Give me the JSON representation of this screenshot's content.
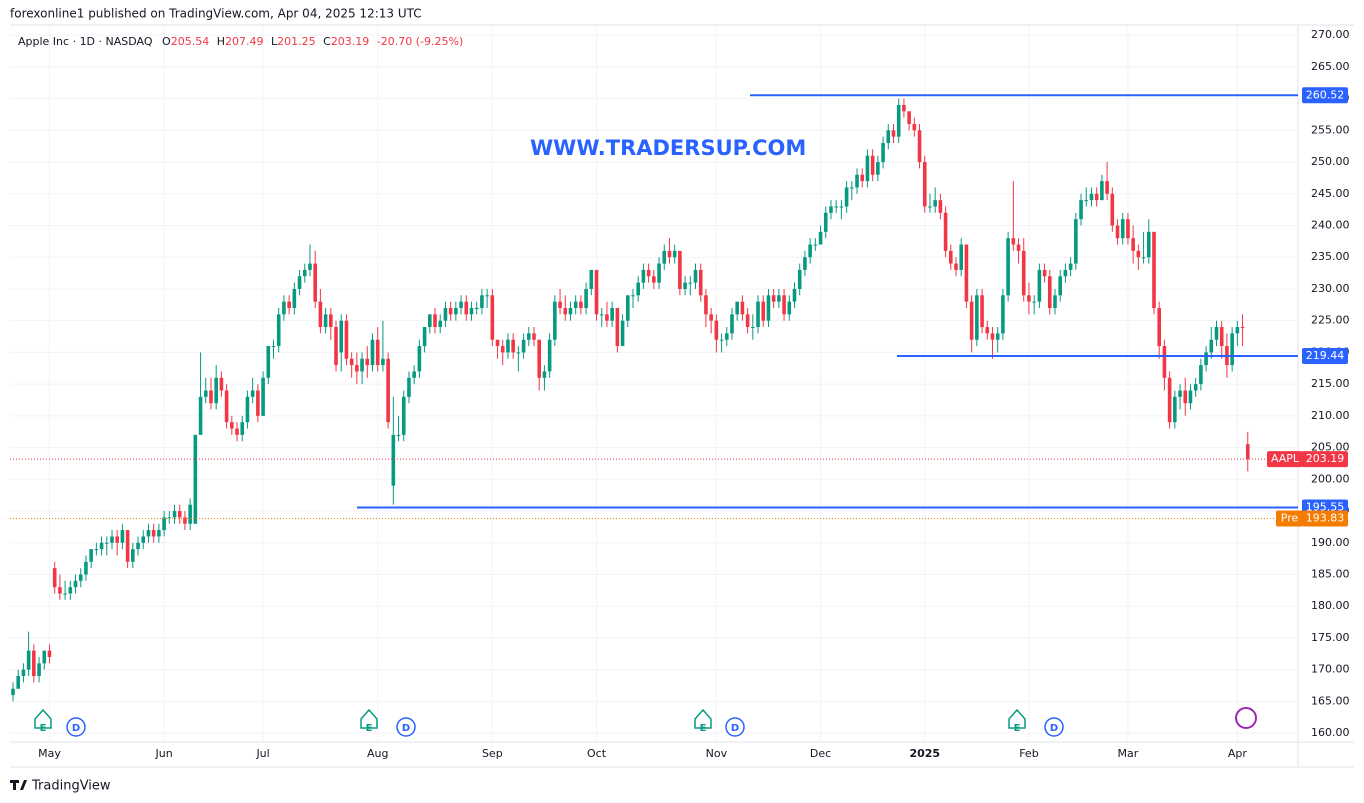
{
  "header": {
    "published": "forexonline1 published on TradingView.com, Apr 04, 2025 12:13 UTC"
  },
  "watermark": "WWW.TRADERSUP.COM",
  "footer": {
    "brand": "TradingView"
  },
  "chart_data": {
    "type": "candlestick",
    "title": "Apple Inc · 1D · NASDAQ",
    "legend": {
      "labels": [
        "O",
        "H",
        "L",
        "C"
      ],
      "values": [
        "205.54",
        "207.49",
        "201.25",
        "203.19"
      ],
      "change": "-20.70 (-9.25%)"
    },
    "up_color": "#089981",
    "down_color": "#f23645",
    "candles": [
      [
        166,
        168,
        165,
        167
      ],
      [
        167,
        170,
        167,
        169
      ],
      [
        169,
        171,
        168,
        170
      ],
      [
        170,
        176,
        169,
        173
      ],
      [
        173,
        174,
        168,
        169
      ],
      [
        169,
        172,
        168,
        171
      ],
      [
        171,
        173,
        170,
        173
      ],
      [
        173,
        174,
        171,
        172
      ],
      [
        186,
        187,
        182,
        183
      ],
      [
        183,
        185,
        181,
        182
      ],
      [
        182,
        184,
        181,
        182
      ],
      [
        182,
        184,
        181,
        183
      ],
      [
        183,
        185,
        182,
        184
      ],
      [
        184,
        186,
        183,
        185
      ],
      [
        185,
        188,
        184,
        187
      ],
      [
        187,
        189,
        186,
        189
      ],
      [
        189,
        190,
        188,
        189
      ],
      [
        189,
        191,
        188,
        190
      ],
      [
        190,
        191,
        188,
        190
      ],
      [
        190,
        192,
        189,
        191
      ],
      [
        191,
        192,
        188,
        190
      ],
      [
        190,
        193,
        189,
        192
      ],
      [
        192,
        192,
        186,
        187
      ],
      [
        187,
        190,
        186,
        189
      ],
      [
        189,
        191,
        188,
        190
      ],
      [
        190,
        192,
        189,
        191
      ],
      [
        191,
        193,
        190,
        192
      ],
      [
        192,
        193,
        190,
        191
      ],
      [
        191,
        193,
        190,
        192
      ],
      [
        192,
        195,
        191,
        194
      ],
      [
        194,
        195,
        193,
        194
      ],
      [
        194,
        196,
        193,
        195
      ],
      [
        195,
        196,
        193,
        194
      ],
      [
        194,
        195,
        192,
        193
      ],
      [
        193,
        197,
        192,
        196
      ],
      [
        193,
        207,
        193,
        207
      ],
      [
        207,
        220,
        207,
        213
      ],
      [
        213,
        216,
        212,
        214
      ],
      [
        214,
        216,
        211,
        212
      ],
      [
        212,
        218,
        211,
        216
      ],
      [
        216,
        217,
        213,
        214
      ],
      [
        214,
        215,
        208,
        209
      ],
      [
        209,
        210,
        207,
        208
      ],
      [
        208,
        209,
        206,
        207
      ],
      [
        207,
        210,
        206,
        209
      ],
      [
        209,
        214,
        208,
        213
      ],
      [
        213,
        216,
        212,
        214
      ],
      [
        214,
        215,
        209,
        210
      ],
      [
        210,
        217,
        210,
        216
      ],
      [
        216,
        221,
        215,
        221
      ],
      [
        221,
        222,
        219,
        221
      ],
      [
        221,
        227,
        220,
        226
      ],
      [
        226,
        229,
        225,
        228
      ],
      [
        228,
        229,
        226,
        227
      ],
      [
        227,
        231,
        226,
        230
      ],
      [
        230,
        233,
        229,
        232
      ],
      [
        232,
        234,
        231,
        233
      ],
      [
        233,
        237,
        232,
        234
      ],
      [
        234,
        236,
        227,
        228
      ],
      [
        228,
        230,
        223,
        224
      ],
      [
        224,
        227,
        223,
        226
      ],
      [
        226,
        227,
        222,
        224
      ],
      [
        224,
        225,
        217,
        218
      ],
      [
        220,
        226,
        217,
        225
      ],
      [
        225,
        226,
        218,
        219
      ],
      [
        219,
        220,
        216,
        218
      ],
      [
        218,
        220,
        215,
        217
      ],
      [
        217,
        220,
        215,
        219
      ],
      [
        219,
        221,
        216,
        218
      ],
      [
        218,
        223,
        217,
        222
      ],
      [
        222,
        224,
        217,
        218
      ],
      [
        218,
        225,
        217,
        219
      ],
      [
        219,
        220,
        208,
        209
      ],
      [
        199,
        213,
        196,
        207
      ],
      [
        207,
        210,
        206,
        207
      ],
      [
        207,
        214,
        206,
        213
      ],
      [
        213,
        217,
        212,
        216
      ],
      [
        216,
        218,
        215,
        217
      ],
      [
        217,
        222,
        216,
        221
      ],
      [
        221,
        224,
        220,
        224
      ],
      [
        224,
        226,
        223,
        226
      ],
      [
        226,
        227,
        223,
        224
      ],
      [
        224,
        226,
        223,
        225
      ],
      [
        225,
        228,
        224,
        227
      ],
      [
        227,
        228,
        225,
        226
      ],
      [
        226,
        228,
        225,
        227
      ],
      [
        227,
        229,
        226,
        228
      ],
      [
        228,
        229,
        225,
        226
      ],
      [
        226,
        228,
        225,
        227
      ],
      [
        227,
        228,
        226,
        227
      ],
      [
        227,
        230,
        226,
        229
      ],
      [
        229,
        230,
        227,
        229
      ],
      [
        229,
        230,
        221,
        222
      ],
      [
        222,
        222,
        219,
        221
      ],
      [
        221,
        222,
        218,
        220
      ],
      [
        220,
        223,
        219,
        222
      ],
      [
        222,
        223,
        219,
        220
      ],
      [
        220,
        221,
        217,
        220
      ],
      [
        220,
        223,
        219,
        222
      ],
      [
        222,
        224,
        221,
        223
      ],
      [
        223,
        224,
        221,
        222
      ],
      [
        222,
        222,
        214,
        216
      ],
      [
        216,
        218,
        214,
        217
      ],
      [
        217,
        223,
        216,
        222
      ],
      [
        222,
        229,
        221,
        228
      ],
      [
        228,
        230,
        226,
        227
      ],
      [
        227,
        229,
        225,
        226
      ],
      [
        226,
        228,
        225,
        227
      ],
      [
        227,
        229,
        226,
        228
      ],
      [
        228,
        229,
        226,
        227
      ],
      [
        227,
        231,
        226,
        230
      ],
      [
        230,
        233,
        229,
        233
      ],
      [
        233,
        233,
        225,
        226
      ],
      [
        226,
        227,
        224,
        226
      ],
      [
        226,
        228,
        224,
        225
      ],
      [
        225,
        228,
        224,
        227
      ],
      [
        227,
        227,
        220,
        221
      ],
      [
        221,
        226,
        221,
        225
      ],
      [
        225,
        229,
        224,
        229
      ],
      [
        229,
        230,
        227,
        229
      ],
      [
        229,
        232,
        228,
        231
      ],
      [
        231,
        234,
        230,
        233
      ],
      [
        233,
        234,
        231,
        232
      ],
      [
        232,
        233,
        230,
        231
      ],
      [
        231,
        235,
        230,
        234
      ],
      [
        234,
        237,
        233,
        236
      ],
      [
        236,
        238,
        234,
        235
      ],
      [
        235,
        237,
        234,
        236
      ],
      [
        236,
        236,
        229,
        230
      ],
      [
        230,
        232,
        229,
        231
      ],
      [
        231,
        232,
        229,
        231
      ],
      [
        231,
        234,
        230,
        233
      ],
      [
        233,
        234,
        228,
        229
      ],
      [
        229,
        230,
        224,
        226
      ],
      [
        226,
        227,
        223,
        225
      ],
      [
        225,
        226,
        220,
        222
      ],
      [
        222,
        223,
        220,
        222
      ],
      [
        222,
        224,
        221,
        223
      ],
      [
        223,
        227,
        222,
        226
      ],
      [
        226,
        228,
        225,
        228
      ],
      [
        228,
        229,
        225,
        226
      ],
      [
        226,
        227,
        223,
        224
      ],
      [
        224,
        226,
        222,
        224
      ],
      [
        224,
        229,
        223,
        228
      ],
      [
        228,
        229,
        224,
        225
      ],
      [
        225,
        230,
        224,
        229
      ],
      [
        229,
        230,
        227,
        228
      ],
      [
        228,
        230,
        227,
        229
      ],
      [
        229,
        230,
        225,
        226
      ],
      [
        226,
        229,
        225,
        228
      ],
      [
        228,
        231,
        227,
        230
      ],
      [
        230,
        234,
        229,
        233
      ],
      [
        233,
        236,
        232,
        235
      ],
      [
        235,
        238,
        234,
        237
      ],
      [
        237,
        238,
        236,
        237
      ],
      [
        237,
        240,
        237,
        239
      ],
      [
        239,
        243,
        238,
        242
      ],
      [
        242,
        244,
        241,
        243
      ],
      [
        243,
        244,
        242,
        243
      ],
      [
        243,
        244,
        241,
        243
      ],
      [
        243,
        247,
        242,
        246
      ],
      [
        246,
        247,
        244,
        246
      ],
      [
        246,
        249,
        245,
        248
      ],
      [
        248,
        249,
        246,
        247
      ],
      [
        247,
        252,
        246,
        251
      ],
      [
        251,
        252,
        247,
        248
      ],
      [
        248,
        251,
        247,
        250
      ],
      [
        250,
        254,
        249,
        253
      ],
      [
        253,
        256,
        252,
        255
      ],
      [
        255,
        256,
        253,
        254
      ],
      [
        254,
        260,
        253,
        259
      ],
      [
        259,
        260,
        257,
        258
      ],
      [
        258,
        258,
        255,
        256
      ],
      [
        256,
        257,
        254,
        255
      ],
      [
        255,
        256,
        249,
        250
      ],
      [
        250,
        251,
        242,
        243
      ],
      [
        243,
        245,
        242,
        243
      ],
      [
        243,
        246,
        242,
        244
      ],
      [
        244,
        245,
        241,
        242
      ],
      [
        242,
        243,
        235,
        236
      ],
      [
        236,
        237,
        233,
        234
      ],
      [
        234,
        235,
        232,
        233
      ],
      [
        233,
        238,
        232,
        237
      ],
      [
        237,
        237,
        227,
        228
      ],
      [
        228,
        229,
        220,
        222
      ],
      [
        222,
        230,
        221,
        229
      ],
      [
        229,
        230,
        223,
        224
      ],
      [
        224,
        225,
        222,
        223
      ],
      [
        223,
        224,
        219,
        222
      ],
      [
        222,
        224,
        220,
        223
      ],
      [
        223,
        230,
        222,
        229
      ],
      [
        229,
        239,
        228,
        238
      ],
      [
        238,
        247,
        236,
        237
      ],
      [
        237,
        238,
        234,
        236
      ],
      [
        236,
        238,
        228,
        229
      ],
      [
        229,
        231,
        226,
        228
      ],
      [
        228,
        229,
        226,
        228
      ],
      [
        228,
        234,
        227,
        233
      ],
      [
        233,
        234,
        231,
        232
      ],
      [
        232,
        233,
        226,
        227
      ],
      [
        227,
        230,
        226,
        229
      ],
      [
        229,
        233,
        228,
        232
      ],
      [
        232,
        234,
        231,
        233
      ],
      [
        233,
        235,
        232,
        234
      ],
      [
        234,
        242,
        233,
        241
      ],
      [
        241,
        245,
        240,
        244
      ],
      [
        244,
        246,
        243,
        244
      ],
      [
        244,
        246,
        243,
        245
      ],
      [
        245,
        246,
        243,
        244
      ],
      [
        244,
        248,
        244,
        247
      ],
      [
        247,
        250,
        244,
        245
      ],
      [
        245,
        246,
        239,
        240
      ],
      [
        240,
        241,
        237,
        238
      ],
      [
        238,
        242,
        237,
        241
      ],
      [
        241,
        242,
        237,
        238
      ],
      [
        238,
        240,
        234,
        236
      ],
      [
        236,
        237,
        233,
        235
      ],
      [
        235,
        239,
        234,
        235
      ],
      [
        235,
        241,
        234,
        239
      ],
      [
        239,
        239,
        226,
        227
      ],
      [
        227,
        228,
        219,
        221
      ],
      [
        221,
        222,
        214,
        216
      ],
      [
        216,
        217,
        208,
        209
      ],
      [
        209,
        214,
        208,
        213
      ],
      [
        213,
        215,
        211,
        214
      ],
      [
        214,
        216,
        210,
        212
      ],
      [
        212,
        215,
        211,
        214
      ],
      [
        214,
        216,
        213,
        215
      ],
      [
        215,
        219,
        214,
        218
      ],
      [
        218,
        221,
        217,
        220
      ],
      [
        220,
        224,
        219,
        222
      ],
      [
        222,
        225,
        221,
        224
      ],
      [
        224,
        225,
        219,
        221
      ],
      [
        221,
        223,
        216,
        218
      ],
      [
        218,
        224,
        217,
        223
      ],
      [
        223,
        225,
        221,
        224
      ],
      [
        224,
        226,
        221,
        223.89
      ],
      [
        205.54,
        207.49,
        201.25,
        203.19
      ]
    ],
    "ylim": [
      158.6,
      271.6
    ],
    "yticks": [
      {
        "value": 160,
        "label": "160.00"
      },
      {
        "value": 165,
        "label": "165.00"
      },
      {
        "value": 170,
        "label": "170.00"
      },
      {
        "value": 175,
        "label": "175.00"
      },
      {
        "value": 180,
        "label": "180.00"
      },
      {
        "value": 185,
        "label": "185.00"
      },
      {
        "value": 190,
        "label": "190.00"
      },
      {
        "value": 195,
        "label": "195.00"
      },
      {
        "value": 200,
        "label": "200.00"
      },
      {
        "value": 205,
        "label": "205.00"
      },
      {
        "value": 210,
        "label": "210.00"
      },
      {
        "value": 215,
        "label": "215.00"
      },
      {
        "value": 220,
        "label": "220.00"
      },
      {
        "value": 225,
        "label": "225.00"
      },
      {
        "value": 230,
        "label": "230.00"
      },
      {
        "value": 235,
        "label": "235.00"
      },
      {
        "value": 240,
        "label": "240.00"
      },
      {
        "value": 245,
        "label": "245.00"
      },
      {
        "value": 250,
        "label": "250.00"
      },
      {
        "value": 255,
        "label": "255.00"
      },
      {
        "value": 260,
        "label": "260.00"
      },
      {
        "value": 265,
        "label": "265.00"
      },
      {
        "value": 270,
        "label": "270.00"
      }
    ],
    "xticks": [
      {
        "value": 7,
        "label": "May"
      },
      {
        "value": 29,
        "label": "Jun"
      },
      {
        "value": 48,
        "label": "Jul"
      },
      {
        "value": 70,
        "label": "Aug"
      },
      {
        "value": 92,
        "label": "Sep"
      },
      {
        "value": 112,
        "label": "Oct"
      },
      {
        "value": 135,
        "label": "Nov"
      },
      {
        "value": 155,
        "label": "Dec"
      },
      {
        "value": 175,
        "label": "2025"
      },
      {
        "value": 195,
        "label": "Feb"
      },
      {
        "value": 214,
        "label": "Mar"
      },
      {
        "value": 235,
        "label": "Apr"
      }
    ],
    "levels": [
      {
        "value": 260.52,
        "color": "#2962ff"
      },
      {
        "value": 219.44,
        "color": "#2962ff"
      },
      {
        "value": 195.55,
        "color": "#2962ff"
      }
    ],
    "last_price": {
      "value": 203.19,
      "label": "AAPL",
      "color": "#f23645"
    },
    "pre_market": {
      "value": 193.83,
      "label": "Pre",
      "color": "#f57c00"
    },
    "event_markers": [
      "E",
      "D",
      "E",
      "D",
      "E",
      "D",
      "E",
      "D"
    ]
  }
}
